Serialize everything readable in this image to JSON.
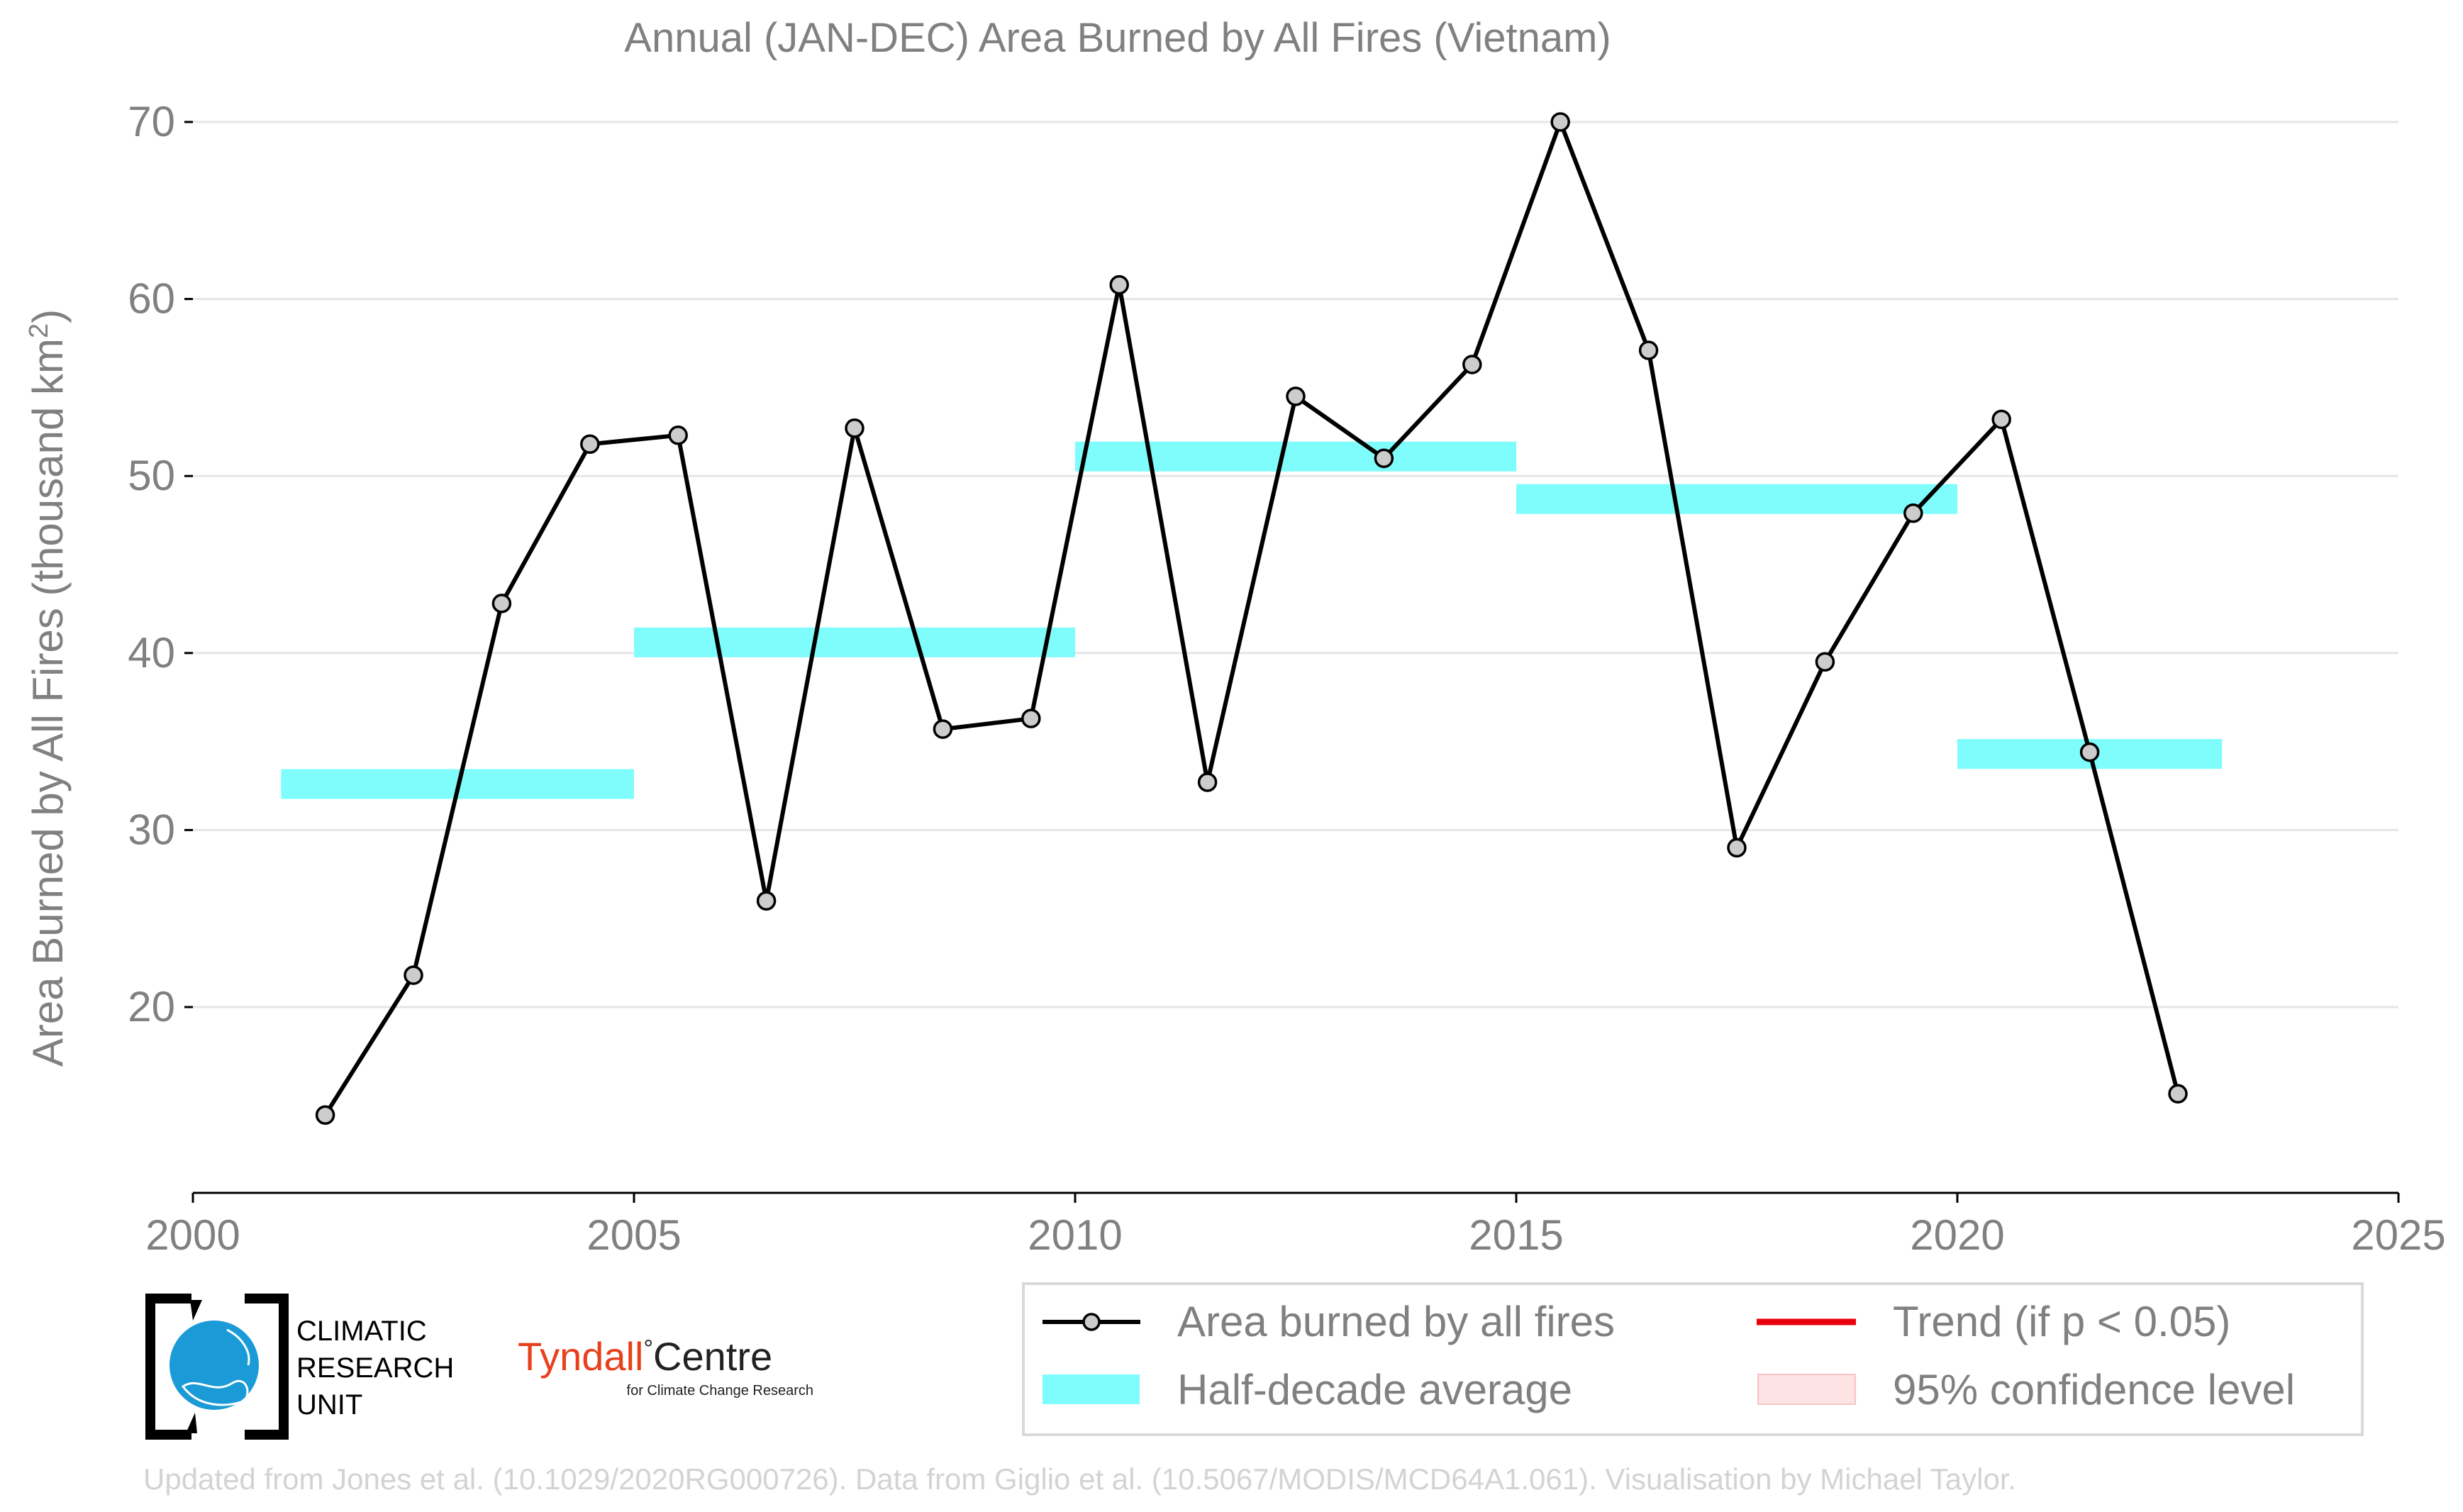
{
  "chart_data": {
    "type": "line",
    "title": "Annual (JAN-DEC) Area Burned by All Fires (Vietnam)",
    "ylabel_main": "Area Burned by All Fires (thousand km",
    "ylabel_sup": "2",
    "ylabel_close": ")",
    "xlabel": "",
    "xlim": [
      2000,
      2025
    ],
    "ylim": [
      9.5,
      70
    ],
    "xticks": [
      2000,
      2005,
      2010,
      2015,
      2020,
      2025
    ],
    "yticks": [
      20,
      30,
      40,
      50,
      60,
      70
    ],
    "grid": "horizontal",
    "series": [
      {
        "name": "Area burned by all fires",
        "x": [
          2001.5,
          2002.5,
          2003.5,
          2004.5,
          2005.5,
          2006.5,
          2007.5,
          2008.5,
          2009.5,
          2010.5,
          2011.5,
          2012.5,
          2013.5,
          2014.5,
          2015.5,
          2016.5,
          2017.5,
          2018.5,
          2019.5,
          2020.5,
          2021.5,
          2022.5
        ],
        "y": [
          13.9,
          21.8,
          42.8,
          51.8,
          52.3,
          26.0,
          52.7,
          35.7,
          36.3,
          60.8,
          32.7,
          54.5,
          51.0,
          56.3,
          70.0,
          57.1,
          29.0,
          39.5,
          47.9,
          53.2,
          34.4,
          15.1
        ]
      }
    ],
    "half_decade_averages": [
      {
        "x_start": 2001,
        "x_end": 2005,
        "value": 32.6
      },
      {
        "x_start": 2005,
        "x_end": 2010,
        "value": 40.6
      },
      {
        "x_start": 2010,
        "x_end": 2015,
        "value": 51.1
      },
      {
        "x_start": 2015,
        "x_end": 2020,
        "value": 48.7
      },
      {
        "x_start": 2020,
        "x_end": 2023,
        "value": 34.3
      }
    ],
    "legend": {
      "placement": "bottom-right",
      "entries": [
        {
          "label": "Area burned by all fires",
          "kind": "line-marker"
        },
        {
          "label": "Trend (if p < 0.05)",
          "kind": "line-red"
        },
        {
          "label": "Half-decade average",
          "kind": "band-cyan"
        },
        {
          "label": "95% confidence level",
          "kind": "band-pink"
        }
      ]
    },
    "colors": {
      "line": "#000000",
      "marker_fill": "#cccccc",
      "band": "#7ffcfc",
      "trend": "#e8000b",
      "confidence": "#fde3e3",
      "grid": "#e6e6e6",
      "text": "#808080",
      "footer": "#d3d3d3"
    }
  },
  "logos": {
    "cru_lines": [
      "CLIMATIC",
      "RESEARCH",
      "UNIT"
    ],
    "tyndall_name": "Tyndall",
    "tyndall_degree": "°",
    "tyndall_centre": "Centre",
    "tyndall_sub": "for Climate Change Research",
    "tyndall_color": "#e8401c"
  },
  "footer": "Updated from Jones et al. (10.1029/2020RG000726). Data from Giglio et al. (10.5067/MODIS/MCD64A1.061). Visualisation by Michael Taylor."
}
